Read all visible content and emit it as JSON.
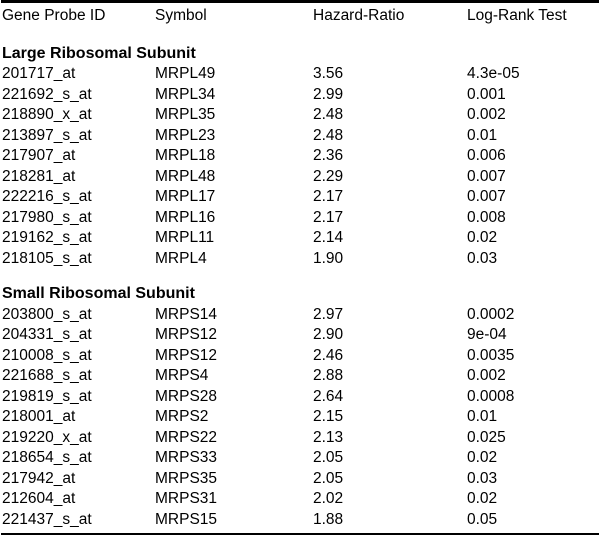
{
  "colors": {
    "text": "#000000",
    "background": "#ffffff",
    "rule": "#000000"
  },
  "table": {
    "columns": [
      "Gene Probe ID",
      "Symbol",
      "Hazard-Ratio",
      "Log-Rank Test"
    ],
    "sections": [
      {
        "title": "Large Ribosomal Subunit",
        "rows": [
          {
            "probe": "201717_at",
            "symbol": "MRPL49",
            "hazard_ratio": "3.56",
            "log_rank": "4.3e-05"
          },
          {
            "probe": "221692_s_at",
            "symbol": "MRPL34",
            "hazard_ratio": "2.99",
            "log_rank": "0.001"
          },
          {
            "probe": "218890_x_at",
            "symbol": "MRPL35",
            "hazard_ratio": "2.48",
            "log_rank": "0.002"
          },
          {
            "probe": "213897_s_at",
            "symbol": "MRPL23",
            "hazard_ratio": "2.48",
            "log_rank": "0.01"
          },
          {
            "probe": "217907_at",
            "symbol": "MRPL18",
            "hazard_ratio": "2.36",
            "log_rank": "0.006"
          },
          {
            "probe": "218281_at",
            "symbol": "MRPL48",
            "hazard_ratio": "2.29",
            "log_rank": "0.007"
          },
          {
            "probe": "222216_s_at",
            "symbol": "MRPL17",
            "hazard_ratio": "2.17",
            "log_rank": "0.007"
          },
          {
            "probe": "217980_s_at",
            "symbol": "MRPL16",
            "hazard_ratio": "2.17",
            "log_rank": "0.008"
          },
          {
            "probe": "219162_s_at",
            "symbol": "MRPL11",
            "hazard_ratio": "2.14",
            "log_rank": "0.02"
          },
          {
            "probe": "218105_s_at",
            "symbol": "MRPL4",
            "hazard_ratio": "1.90",
            "log_rank": "0.03"
          }
        ]
      },
      {
        "title": "Small Ribosomal Subunit",
        "rows": [
          {
            "probe": "203800_s_at",
            "symbol": "MRPS14",
            "hazard_ratio": "2.97",
            "log_rank": "0.0002"
          },
          {
            "probe": "204331_s_at",
            "symbol": "MRPS12",
            "hazard_ratio": "2.90",
            "log_rank": "9e-04"
          },
          {
            "probe": "210008_s_at",
            "symbol": "MRPS12",
            "hazard_ratio": "2.46",
            "log_rank": "0.0035"
          },
          {
            "probe": "221688_s_at",
            "symbol": "MRPS4",
            "hazard_ratio": "2.88",
            "log_rank": "0.002"
          },
          {
            "probe": "219819_s_at",
            "symbol": "MRPS28",
            "hazard_ratio": "2.64",
            "log_rank": "0.0008"
          },
          {
            "probe": "218001_at",
            "symbol": "MRPS2",
            "hazard_ratio": "2.15",
            "log_rank": "0.01"
          },
          {
            "probe": "219220_x_at",
            "symbol": "MRPS22",
            "hazard_ratio": "2.13",
            "log_rank": "0.025"
          },
          {
            "probe": "218654_s_at",
            "symbol": "MRPS33",
            "hazard_ratio": "2.05",
            "log_rank": "0.02"
          },
          {
            "probe": "217942_at",
            "symbol": "MRPS35",
            "hazard_ratio": "2.05",
            "log_rank": "0.03"
          },
          {
            "probe": "212604_at",
            "symbol": "MRPS31",
            "hazard_ratio": "2.02",
            "log_rank": "0.02"
          },
          {
            "probe": "221437_s_at",
            "symbol": "MRPS15",
            "hazard_ratio": "1.88",
            "log_rank": "0.05"
          }
        ]
      }
    ]
  }
}
